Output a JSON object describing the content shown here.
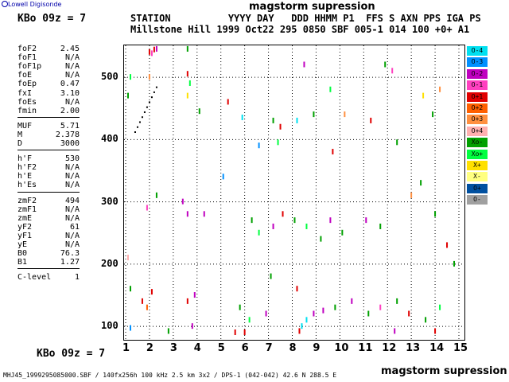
{
  "logo": {
    "text": "Lowell Digisonde"
  },
  "station_code": "KBo 09z = 7",
  "title": "magstorm supression",
  "header": {
    "labels": "STATION          YYYY DAY   DDD HHMM P1  FFS S AXN PPS IGA PS",
    "values": "Millstone Hill 1999 Oct22 295 0850 SBF 005-1 014 100 +0+ A1"
  },
  "params": {
    "group1": [
      {
        "name": "foF2",
        "value": "2.45"
      },
      {
        "name": "foF1",
        "value": "N/A"
      },
      {
        "name": "foF1p",
        "value": "N/A"
      },
      {
        "name": "foE",
        "value": "N/A"
      },
      {
        "name": "foEp",
        "value": "0.47"
      },
      {
        "name": "fxI",
        "value": "3.10"
      },
      {
        "name": "foEs",
        "value": "N/A"
      },
      {
        "name": "fmin",
        "value": "2.00"
      }
    ],
    "group2": [
      {
        "name": "MUF",
        "value": "5.71"
      },
      {
        "name": "M",
        "value": "2.378"
      },
      {
        "name": "D",
        "value": "3000"
      }
    ],
    "group3": [
      {
        "name": "h'F",
        "value": "530"
      },
      {
        "name": "h'F2",
        "value": "N/A"
      },
      {
        "name": "h'E",
        "value": "N/A"
      },
      {
        "name": "h'Es",
        "value": "N/A"
      }
    ],
    "group4": [
      {
        "name": "zmF2",
        "value": "494"
      },
      {
        "name": "zmF1",
        "value": "N/A"
      },
      {
        "name": "zmE",
        "value": "N/A"
      },
      {
        "name": "yF2",
        "value": "61"
      },
      {
        "name": "yF1",
        "value": "N/A"
      },
      {
        "name": "yE",
        "value": "N/A"
      },
      {
        "name": "B0",
        "value": "76.3"
      },
      {
        "name": "B1",
        "value": "1.27"
      }
    ],
    "group5": [
      {
        "name": "C-level",
        "value": "1"
      }
    ]
  },
  "legend": [
    {
      "label": "O-4",
      "color": "#00e0f0"
    },
    {
      "label": "O-3",
      "color": "#0090ff"
    },
    {
      "label": "O-2",
      "color": "#c000c0"
    },
    {
      "label": "O-1",
      "color": "#ff40c0"
    },
    {
      "label": "O+1",
      "color": "#e00000"
    },
    {
      "label": "O+2",
      "color": "#ff6000"
    },
    {
      "label": "O+3",
      "color": "#ff9040"
    },
    {
      "label": "O+4",
      "color": "#ffb0b0"
    },
    {
      "label": "Xo-",
      "color": "#00a000"
    },
    {
      "label": "Xo+",
      "color": "#00ff40"
    },
    {
      "label": "X+",
      "color": "#ffe000"
    },
    {
      "label": "X-",
      "color": "#ffff80"
    },
    {
      "label": "O+",
      "color": "#0050a0"
    },
    {
      "label": "O-",
      "color": "#a0a0a0"
    }
  ],
  "footer": {
    "file_info": "MHJ45_1999295085000.SBF / 140fx256h 100 kHz 2.5 km 3x2 / DPS-1 (042-042) 42.6 N 288.5 E"
  },
  "chart_data": {
    "type": "scatter",
    "x_ticks": [
      "1",
      "2",
      "3",
      "4",
      "5",
      "6",
      "7",
      "8",
      "9",
      "10",
      "11",
      "12",
      "13",
      "14",
      "15"
    ],
    "y_ticks": [
      "100",
      "200",
      "300",
      "400",
      "500"
    ],
    "xlim": [
      1,
      15
    ],
    "ylim": [
      90,
      550
    ],
    "trace": [
      {
        "x": 1.4,
        "y": 412
      },
      {
        "x": 1.5,
        "y": 420
      },
      {
        "x": 1.6,
        "y": 428
      },
      {
        "x": 1.7,
        "y": 436
      },
      {
        "x": 1.8,
        "y": 444
      },
      {
        "x": 1.9,
        "y": 452
      },
      {
        "x": 2.0,
        "y": 460
      },
      {
        "x": 2.1,
        "y": 468
      },
      {
        "x": 2.2,
        "y": 476
      },
      {
        "x": 2.3,
        "y": 484
      }
    ],
    "echoes": [
      {
        "x": 2.0,
        "y": 540,
        "c": 4
      },
      {
        "x": 2.1,
        "y": 538,
        "c": 3
      },
      {
        "x": 2.2,
        "y": 544,
        "c": 4
      },
      {
        "x": 2.3,
        "y": 545,
        "c": 2
      },
      {
        "x": 2.0,
        "y": 500,
        "c": 6
      },
      {
        "x": 1.1,
        "y": 470,
        "c": 8
      },
      {
        "x": 1.2,
        "y": 500,
        "c": 9
      },
      {
        "x": 3.6,
        "y": 545,
        "c": 8
      },
      {
        "x": 3.6,
        "y": 505,
        "c": 4
      },
      {
        "x": 3.7,
        "y": 490,
        "c": 9
      },
      {
        "x": 3.6,
        "y": 470,
        "c": 10
      },
      {
        "x": 4.1,
        "y": 445,
        "c": 8
      },
      {
        "x": 5.3,
        "y": 460,
        "c": 4
      },
      {
        "x": 5.9,
        "y": 435,
        "c": 0
      },
      {
        "x": 6.6,
        "y": 390,
        "c": 1
      },
      {
        "x": 7.2,
        "y": 430,
        "c": 8
      },
      {
        "x": 7.5,
        "y": 420,
        "c": 4
      },
      {
        "x": 7.4,
        "y": 395,
        "c": 9
      },
      {
        "x": 8.2,
        "y": 430,
        "c": 0
      },
      {
        "x": 8.5,
        "y": 520,
        "c": 2
      },
      {
        "x": 8.9,
        "y": 440,
        "c": 8
      },
      {
        "x": 9.6,
        "y": 480,
        "c": 9
      },
      {
        "x": 9.7,
        "y": 380,
        "c": 4
      },
      {
        "x": 10.2,
        "y": 440,
        "c": 6
      },
      {
        "x": 11.3,
        "y": 430,
        "c": 4
      },
      {
        "x": 11.9,
        "y": 520,
        "c": 8
      },
      {
        "x": 12.2,
        "y": 510,
        "c": 3
      },
      {
        "x": 12.4,
        "y": 395,
        "c": 8
      },
      {
        "x": 13.5,
        "y": 470,
        "c": 10
      },
      {
        "x": 13.9,
        "y": 440,
        "c": 8
      },
      {
        "x": 14.2,
        "y": 480,
        "c": 6
      },
      {
        "x": 1.9,
        "y": 290,
        "c": 3
      },
      {
        "x": 2.3,
        "y": 310,
        "c": 8
      },
      {
        "x": 3.4,
        "y": 300,
        "c": 2
      },
      {
        "x": 3.6,
        "y": 280,
        "c": 2
      },
      {
        "x": 4.3,
        "y": 280,
        "c": 2
      },
      {
        "x": 5.1,
        "y": 340,
        "c": 1
      },
      {
        "x": 6.3,
        "y": 270,
        "c": 8
      },
      {
        "x": 6.6,
        "y": 250,
        "c": 9
      },
      {
        "x": 7.2,
        "y": 260,
        "c": 2
      },
      {
        "x": 7.6,
        "y": 280,
        "c": 4
      },
      {
        "x": 8.1,
        "y": 270,
        "c": 8
      },
      {
        "x": 8.6,
        "y": 260,
        "c": 9
      },
      {
        "x": 9.2,
        "y": 240,
        "c": 8
      },
      {
        "x": 9.6,
        "y": 270,
        "c": 2
      },
      {
        "x": 10.1,
        "y": 250,
        "c": 8
      },
      {
        "x": 11.1,
        "y": 270,
        "c": 2
      },
      {
        "x": 11.7,
        "y": 260,
        "c": 8
      },
      {
        "x": 13.0,
        "y": 310,
        "c": 6
      },
      {
        "x": 13.4,
        "y": 330,
        "c": 8
      },
      {
        "x": 14.0,
        "y": 280,
        "c": 8
      },
      {
        "x": 14.5,
        "y": 230,
        "c": 4
      },
      {
        "x": 1.1,
        "y": 210,
        "c": 7
      },
      {
        "x": 1.2,
        "y": 160,
        "c": 8
      },
      {
        "x": 1.7,
        "y": 140,
        "c": 4
      },
      {
        "x": 1.9,
        "y": 130,
        "c": 5
      },
      {
        "x": 2.1,
        "y": 155,
        "c": 4
      },
      {
        "x": 3.6,
        "y": 140,
        "c": 4
      },
      {
        "x": 3.9,
        "y": 150,
        "c": 2
      },
      {
        "x": 3.8,
        "y": 100,
        "c": 2
      },
      {
        "x": 5.8,
        "y": 130,
        "c": 8
      },
      {
        "x": 6.2,
        "y": 110,
        "c": 9
      },
      {
        "x": 6.9,
        "y": 120,
        "c": 2
      },
      {
        "x": 7.1,
        "y": 180,
        "c": 8
      },
      {
        "x": 8.2,
        "y": 160,
        "c": 4
      },
      {
        "x": 8.6,
        "y": 110,
        "c": 0
      },
      {
        "x": 8.9,
        "y": 120,
        "c": 2
      },
      {
        "x": 9.3,
        "y": 125,
        "c": 2
      },
      {
        "x": 9.8,
        "y": 130,
        "c": 8
      },
      {
        "x": 10.5,
        "y": 140,
        "c": 2
      },
      {
        "x": 11.2,
        "y": 120,
        "c": 8
      },
      {
        "x": 11.7,
        "y": 130,
        "c": 3
      },
      {
        "x": 12.4,
        "y": 140,
        "c": 8
      },
      {
        "x": 12.9,
        "y": 120,
        "c": 4
      },
      {
        "x": 13.6,
        "y": 110,
        "c": 8
      },
      {
        "x": 14.2,
        "y": 130,
        "c": 9
      },
      {
        "x": 14.8,
        "y": 200,
        "c": 8
      },
      {
        "x": 1.2,
        "y": 97,
        "c": 1
      },
      {
        "x": 2.8,
        "y": 92,
        "c": 8
      },
      {
        "x": 5.6,
        "y": 90,
        "c": 4
      },
      {
        "x": 6.0,
        "y": 90,
        "c": 4
      },
      {
        "x": 8.3,
        "y": 92,
        "c": 4
      },
      {
        "x": 8.4,
        "y": 100,
        "c": 0
      },
      {
        "x": 12.3,
        "y": 92,
        "c": 2
      },
      {
        "x": 14.0,
        "y": 92,
        "c": 4
      }
    ]
  }
}
